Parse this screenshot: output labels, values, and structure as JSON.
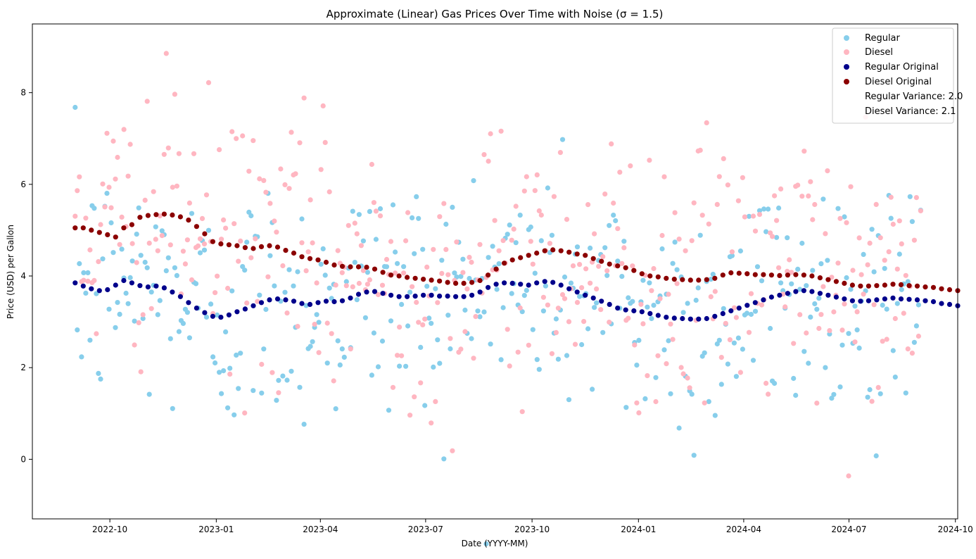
{
  "chart_data": {
    "type": "scatter",
    "title": "Approximate (Linear) Gas Prices Over Time with Noise (σ = 1.5)",
    "xlabel": "Date (YYYY-MM)",
    "ylabel": "Price (USD) per Gallon",
    "x_range": [
      "2022-07-26",
      "2024-10-03"
    ],
    "ylim": [
      -1.3,
      9.5
    ],
    "xticks": [
      {
        "date": "2022-10-01",
        "label": "2022-10"
      },
      {
        "date": "2023-01-01",
        "label": "2023-01"
      },
      {
        "date": "2023-04-01",
        "label": "2023-04"
      },
      {
        "date": "2023-07-01",
        "label": "2023-07"
      },
      {
        "date": "2023-10-01",
        "label": "2023-10"
      },
      {
        "date": "2024-01-01",
        "label": "2024-01"
      },
      {
        "date": "2024-04-01",
        "label": "2024-04"
      },
      {
        "date": "2024-07-01",
        "label": "2024-07"
      },
      {
        "date": "2024-10-01",
        "label": "2024-10"
      }
    ],
    "yticks": [
      0,
      2,
      4,
      6,
      8
    ],
    "grid": false,
    "legend_position": "top-right",
    "legend": {
      "entries": [
        "Regular",
        "Diesel",
        "Regular Original",
        "Diesel Original"
      ],
      "notes": [
        "Regular Variance: 2.0",
        "Diesel Variance: 2.1"
      ]
    },
    "colors": {
      "regular": "#87ceeb",
      "diesel": "#ffb6c1",
      "regular_original": "#00008b",
      "diesel_original": "#8b0000"
    },
    "noisy_points": {
      "start_date": "2022-09-01",
      "end_date": "2024-09-01",
      "count": 400,
      "noise_sigma": 1.5
    },
    "series": [
      {
        "name": "Regular Original",
        "x_start": "2022-09-01",
        "x_step_days": 7,
        "values": [
          3.85,
          3.78,
          3.72,
          3.68,
          3.7,
          3.8,
          3.9,
          3.85,
          3.79,
          3.76,
          3.78,
          3.74,
          3.65,
          3.55,
          3.42,
          3.3,
          3.2,
          3.12,
          3.1,
          3.15,
          3.22,
          3.28,
          3.35,
          3.42,
          3.48,
          3.5,
          3.48,
          3.45,
          3.4,
          3.38,
          3.42,
          3.45,
          3.44,
          3.46,
          3.52,
          3.6,
          3.65,
          3.66,
          3.62,
          3.58,
          3.55,
          3.55,
          3.56,
          3.58,
          3.58,
          3.56,
          3.56,
          3.55,
          3.55,
          3.58,
          3.65,
          3.75,
          3.82,
          3.85,
          3.84,
          3.82,
          3.8,
          3.85,
          3.88,
          3.86,
          3.8,
          3.72,
          3.65,
          3.58,
          3.52,
          3.45,
          3.38,
          3.3,
          3.26,
          3.24,
          3.22,
          3.18,
          3.14,
          3.1,
          3.08,
          3.07,
          3.06,
          3.06,
          3.07,
          3.12,
          3.18,
          3.24,
          3.3,
          3.36,
          3.42,
          3.48,
          3.54,
          3.58,
          3.62,
          3.66,
          3.68,
          3.66,
          3.62,
          3.58,
          3.54,
          3.5,
          3.46,
          3.45,
          3.46,
          3.48,
          3.5,
          3.52,
          3.5,
          3.49,
          3.48,
          3.46,
          3.44,
          3.4,
          3.38,
          3.35
        ]
      },
      {
        "name": "Diesel Original",
        "x_start": "2022-09-01",
        "x_step_days": 7,
        "values": [
          5.05,
          5.05,
          5.0,
          4.95,
          4.9,
          4.85,
          5.05,
          5.12,
          5.28,
          5.32,
          5.34,
          5.35,
          5.33,
          5.29,
          5.22,
          5.08,
          4.92,
          4.75,
          4.7,
          4.68,
          4.66,
          4.62,
          4.6,
          4.64,
          4.66,
          4.63,
          4.56,
          4.5,
          4.42,
          4.38,
          4.35,
          4.3,
          4.24,
          4.21,
          4.2,
          4.2,
          4.19,
          4.15,
          4.08,
          4.02,
          4.0,
          3.97,
          3.95,
          3.93,
          3.91,
          3.89,
          3.86,
          3.84,
          3.84,
          3.86,
          3.9,
          4.02,
          4.15,
          4.28,
          4.35,
          4.4,
          4.45,
          4.5,
          4.55,
          4.57,
          4.55,
          4.52,
          4.48,
          4.45,
          4.38,
          4.32,
          4.26,
          4.22,
          4.18,
          4.12,
          4.05,
          4.0,
          3.98,
          3.95,
          3.93,
          3.92,
          3.91,
          3.91,
          3.92,
          3.95,
          4.02,
          4.07,
          4.06,
          4.05,
          4.03,
          4.03,
          4.02,
          4.01,
          4.02,
          4.03,
          4.02,
          4.0,
          3.96,
          3.92,
          3.88,
          3.84,
          3.8,
          3.78,
          3.78,
          3.79,
          3.8,
          3.82,
          3.81,
          3.79,
          3.78,
          3.76,
          3.75,
          3.72,
          3.7,
          3.68
        ]
      }
    ]
  }
}
